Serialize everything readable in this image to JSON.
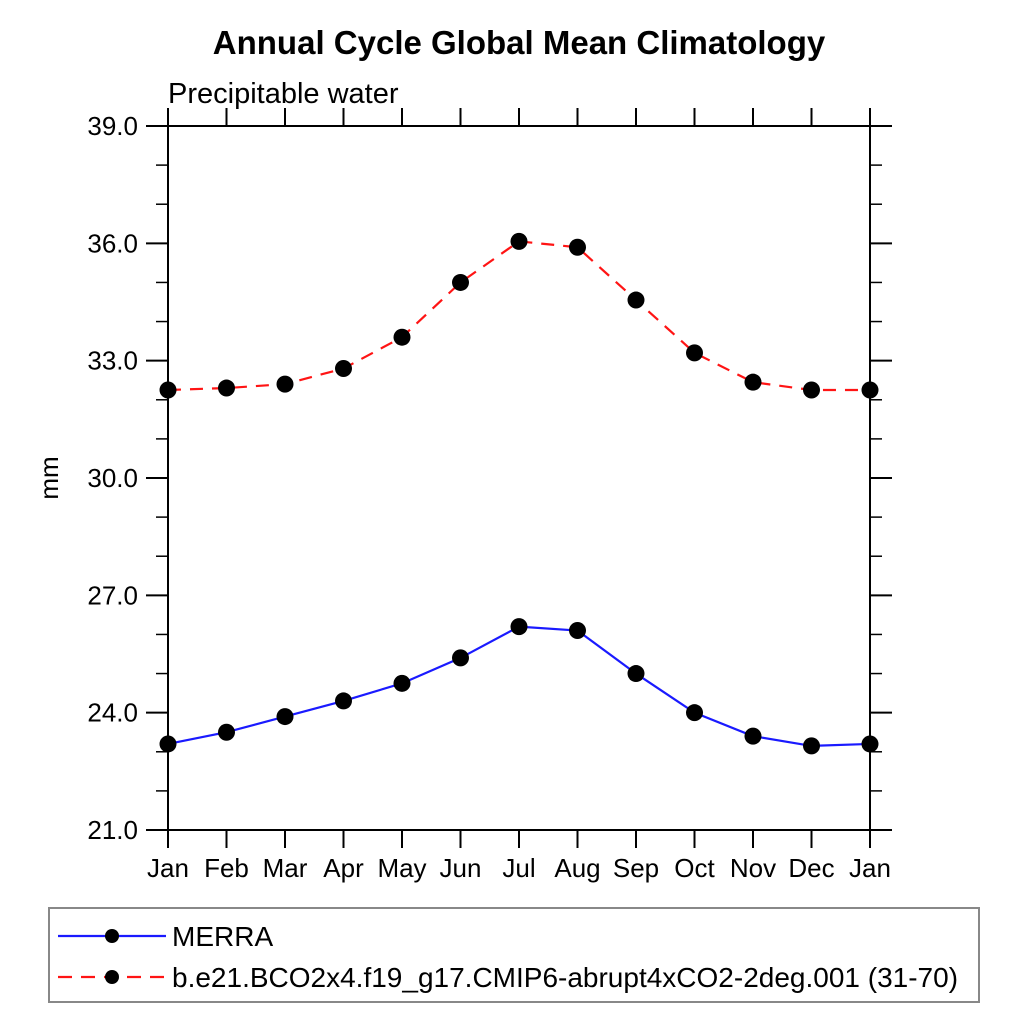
{
  "page": {
    "background": "#ffffff"
  },
  "colors": {
    "axis": "#000000",
    "marker": "#000000",
    "legend_border": "#888888",
    "series_merra": "#1a1aff",
    "series_model": "#ff1414"
  },
  "chart_data": {
    "type": "line",
    "title": "Annual Cycle Global Mean Climatology",
    "subtitle": "Precipitable water",
    "ylabel": "mm",
    "xlabel": "",
    "categories": [
      "Jan",
      "Feb",
      "Mar",
      "Apr",
      "May",
      "Jun",
      "Jul",
      "Aug",
      "Sep",
      "Oct",
      "Nov",
      "Dec",
      "Jan"
    ],
    "series": [
      {
        "name": "MERRA",
        "color": "#1a1aff",
        "line_style": "solid",
        "marker": "filled-circle",
        "marker_color": "#000000",
        "values": [
          23.2,
          23.5,
          23.9,
          24.3,
          24.75,
          25.4,
          26.2,
          26.1,
          25.0,
          24.0,
          23.4,
          23.15,
          23.2
        ]
      },
      {
        "name": "b.e21.BCO2x4.f19_g17.CMIP6-abrupt4xCO2-2deg.001 (31-70)",
        "color": "#ff1414",
        "line_style": "dashed",
        "marker": "filled-circle",
        "marker_color": "#000000",
        "values": [
          32.25,
          32.3,
          32.4,
          32.8,
          33.6,
          35.0,
          36.05,
          35.9,
          34.55,
          33.2,
          32.45,
          32.25,
          32.25
        ]
      }
    ],
    "ylim": [
      21.0,
      39.0
    ],
    "y_major_ticks": [
      21.0,
      24.0,
      27.0,
      30.0,
      33.0,
      36.0,
      39.0
    ],
    "y_major_tick_labels": [
      "21.0",
      "24.0",
      "27.0",
      "30.0",
      "33.0",
      "36.0",
      "39.0"
    ],
    "y_minor_step": 1.0,
    "grid": false,
    "legend_position": "bottom-left-box"
  }
}
